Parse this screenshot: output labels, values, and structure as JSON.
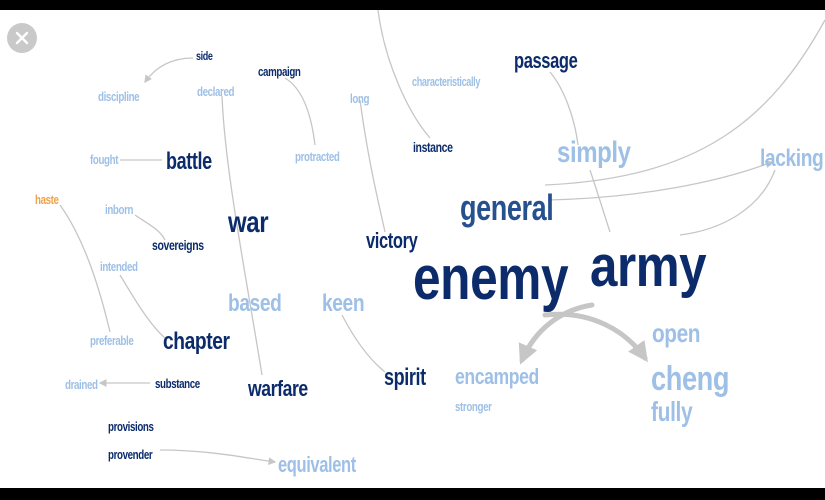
{
  "colors": {
    "dark": "#0b2b6b",
    "medium": "#27508f",
    "light": "#9ec0e6",
    "accent": "#f0a24a",
    "edge": "#c6c6c6",
    "close_bg": "#c9c9c9"
  },
  "close_button": {
    "icon": "close-icon"
  },
  "words": [
    {
      "id": "side",
      "text": "side",
      "tone": "dark"
    },
    {
      "id": "campaign",
      "text": "campaign",
      "tone": "dark"
    },
    {
      "id": "passage",
      "text": "passage",
      "tone": "dark"
    },
    {
      "id": "discipline",
      "text": "discipline",
      "tone": "light"
    },
    {
      "id": "declared",
      "text": "declared",
      "tone": "light"
    },
    {
      "id": "long",
      "text": "long",
      "tone": "light"
    },
    {
      "id": "characteristically",
      "text": "characteristically",
      "tone": "light"
    },
    {
      "id": "protracted",
      "text": "protracted",
      "tone": "light"
    },
    {
      "id": "instance",
      "text": "instance",
      "tone": "dark"
    },
    {
      "id": "simply",
      "text": "simply",
      "tone": "light"
    },
    {
      "id": "lacking",
      "text": "lacking",
      "tone": "light"
    },
    {
      "id": "fought",
      "text": "fought",
      "tone": "light"
    },
    {
      "id": "battle",
      "text": "battle",
      "tone": "dark"
    },
    {
      "id": "haste",
      "text": "haste",
      "tone": "accent"
    },
    {
      "id": "general",
      "text": "general",
      "tone": "medium"
    },
    {
      "id": "inborn",
      "text": "inborn",
      "tone": "light"
    },
    {
      "id": "war",
      "text": "war",
      "tone": "dark"
    },
    {
      "id": "sovereigns",
      "text": "sovereigns",
      "tone": "dark"
    },
    {
      "id": "victory",
      "text": "victory",
      "tone": "dark"
    },
    {
      "id": "intended",
      "text": "intended",
      "tone": "light"
    },
    {
      "id": "enemy",
      "text": "enemy",
      "tone": "dark"
    },
    {
      "id": "army",
      "text": "army",
      "tone": "dark"
    },
    {
      "id": "based",
      "text": "based",
      "tone": "light"
    },
    {
      "id": "keen",
      "text": "keen",
      "tone": "light"
    },
    {
      "id": "open",
      "text": "open",
      "tone": "light"
    },
    {
      "id": "preferable",
      "text": "preferable",
      "tone": "light"
    },
    {
      "id": "chapter",
      "text": "chapter",
      "tone": "dark"
    },
    {
      "id": "cheng",
      "text": "cheng",
      "tone": "light"
    },
    {
      "id": "encamped",
      "text": "encamped",
      "tone": "light"
    },
    {
      "id": "spirit",
      "text": "spirit",
      "tone": "dark"
    },
    {
      "id": "drained",
      "text": "drained",
      "tone": "light"
    },
    {
      "id": "substance",
      "text": "substance",
      "tone": "dark"
    },
    {
      "id": "warfare",
      "text": "warfare",
      "tone": "dark"
    },
    {
      "id": "stronger",
      "text": "stronger",
      "tone": "light"
    },
    {
      "id": "fully",
      "text": "fully",
      "tone": "light"
    },
    {
      "id": "provisions",
      "text": "provisions",
      "tone": "dark"
    },
    {
      "id": "provender",
      "text": "provender",
      "tone": "dark"
    },
    {
      "id": "equivalent",
      "text": "equivalent",
      "tone": "light"
    }
  ]
}
